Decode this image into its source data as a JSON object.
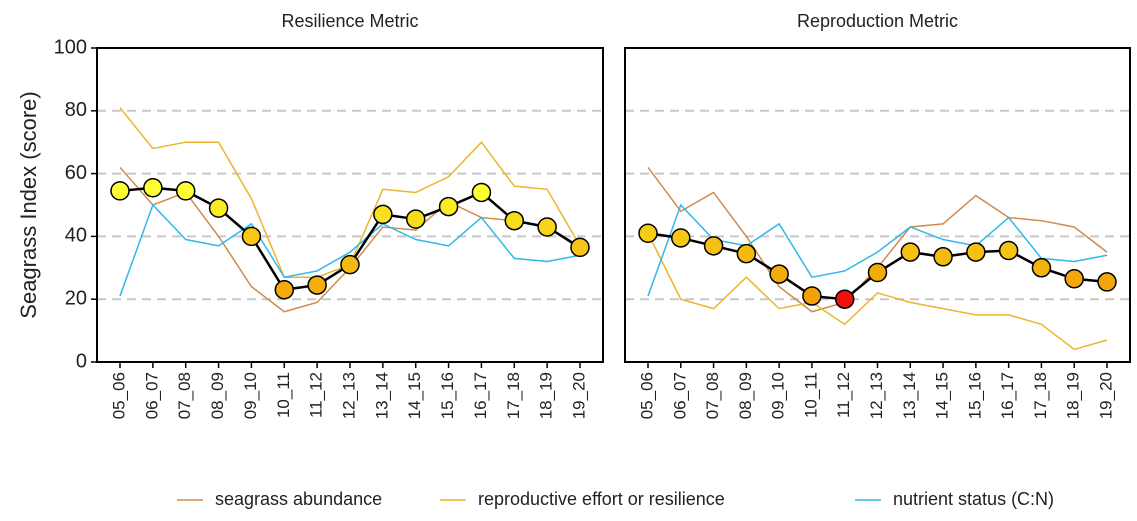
{
  "chart_data": [
    {
      "type": "line",
      "title": "Resilience Metric",
      "y_label": "Seagrass Index (score)",
      "categories": [
        "05_06",
        "06_07",
        "07_08",
        "08_09",
        "09_10",
        "10_11",
        "11_12",
        "12_13",
        "13_14",
        "14_15",
        "15_16",
        "16_17",
        "17_18",
        "18_19",
        "19_20"
      ],
      "ylim": [
        0,
        100
      ],
      "yticks": [
        0,
        20,
        40,
        60,
        80,
        100
      ],
      "grid": true,
      "series": [
        {
          "name": "seagrass abundance",
          "color": "#d08b4b",
          "values": [
            62,
            50,
            54,
            40,
            24,
            16,
            19,
            30,
            43,
            42,
            51,
            46,
            45,
            43,
            36
          ]
        },
        {
          "name": "reproductive effort or resilience",
          "color": "#ecb52e",
          "values": [
            81,
            68,
            70,
            70,
            52,
            27,
            27,
            31,
            55,
            54,
            59,
            70,
            56,
            55,
            37
          ]
        },
        {
          "name": "nutrient status (C:N)",
          "color": "#2fb8ea",
          "values": [
            21,
            50,
            39,
            37,
            44,
            27,
            29,
            35,
            44,
            39,
            37,
            46,
            33,
            32,
            34
          ]
        },
        {
          "color": "#000000",
          "values": [
            54.5,
            55.5,
            54.5,
            49,
            40,
            23,
            24.5,
            31,
            47,
            45.5,
            49.5,
            54,
            45,
            43,
            36.5
          ],
          "marker_colors": [
            "#ffff33",
            "#ffff33",
            "#ffff33",
            "#fbeb22",
            "#f6c814",
            "#f3ab0c",
            "#f3ad0d",
            "#f4b80f",
            "#f9e11e",
            "#f8dc1c",
            "#fbeb22",
            "#ffff33",
            "#f8dc1c",
            "#f7d51a",
            "#f5c414"
          ]
        }
      ]
    },
    {
      "type": "line",
      "title": "Reproduction Metric",
      "categories": [
        "05_06",
        "06_07",
        "07_08",
        "08_09",
        "09_10",
        "10_11",
        "11_12",
        "12_13",
        "13_14",
        "14_15",
        "15_16",
        "16_17",
        "17_18",
        "18_19",
        "19_20"
      ],
      "ylim": [
        0,
        100
      ],
      "yticks": [
        0,
        20,
        40,
        60,
        80,
        100
      ],
      "grid": true,
      "series": [
        {
          "color": "#d08b4b",
          "values": [
            62,
            48,
            54,
            40,
            24,
            16,
            19,
            30,
            43,
            44,
            53,
            46,
            45,
            43,
            35
          ]
        },
        {
          "color": "#ecb52e",
          "values": [
            41,
            20,
            17,
            27,
            17,
            19,
            12,
            22,
            19,
            17,
            15,
            15,
            12,
            4,
            7
          ]
        },
        {
          "color": "#2fb8ea",
          "values": [
            21,
            50,
            39,
            37,
            44,
            27,
            29,
            35,
            43,
            39,
            37,
            46,
            33,
            32,
            34
          ]
        },
        {
          "color": "#000000",
          "values": [
            41,
            39.5,
            37,
            34.5,
            28,
            21,
            20,
            28.5,
            35,
            33.5,
            35,
            35.5,
            30,
            26.5,
            25.5
          ],
          "marker_colors": [
            "#f6cc16",
            "#f6c814",
            "#f5c012",
            "#f4ba10",
            "#f3ab0c",
            "#f3a00a",
            "#ee1111",
            "#f3ab0c",
            "#f5c012",
            "#f4bc11",
            "#f5c012",
            "#f5c414",
            "#f4b20e",
            "#f3a70b",
            "#f3a50b"
          ]
        }
      ]
    }
  ]
}
